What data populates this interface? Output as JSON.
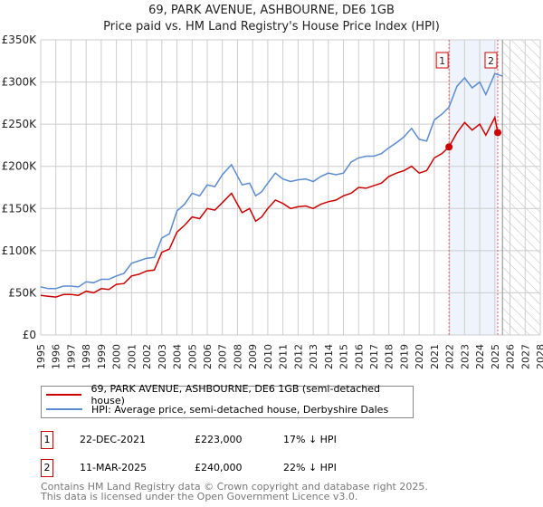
{
  "chart_data": {
    "type": "line",
    "title": "69, PARK AVENUE, ASHBOURNE, DE6 1GB",
    "subtitle": "Price paid vs. HM Land Registry's House Price Index (HPI)",
    "xlim": [
      1995,
      2028
    ],
    "ylim": [
      0,
      350000
    ],
    "x_ticks": [
      "1995",
      "1996",
      "1997",
      "1998",
      "1999",
      "2000",
      "2001",
      "2002",
      "2003",
      "2004",
      "2005",
      "2006",
      "2007",
      "2008",
      "2009",
      "2010",
      "2011",
      "2012",
      "2013",
      "2014",
      "2015",
      "2016",
      "2017",
      "2018",
      "2019",
      "2020",
      "2021",
      "2022",
      "2023",
      "2024",
      "2025",
      "2026",
      "2027",
      "2028"
    ],
    "y_ticks": [
      {
        "v": 0,
        "label": "£0"
      },
      {
        "v": 50000,
        "label": "£50K"
      },
      {
        "v": 100000,
        "label": "£100K"
      },
      {
        "v": 150000,
        "label": "£150K"
      },
      {
        "v": 200000,
        "label": "£200K"
      },
      {
        "v": 250000,
        "label": "£250K"
      },
      {
        "v": 300000,
        "label": "£300K"
      },
      {
        "v": 350000,
        "label": "£350K"
      }
    ],
    "grid": true,
    "shaded_range": [
      2021.97,
      2025.19
    ],
    "forecast_hatch_from": 2025.5,
    "series": [
      {
        "name": "69, PARK AVENUE, ASHBOURNE, DE6 1GB (semi-detached house)",
        "color": "#cc0000",
        "x": [
          1995,
          1995.5,
          1996,
          1996.5,
          1997,
          1997.5,
          1998,
          1998.5,
          1999,
          1999.5,
          2000,
          2000.5,
          2001,
          2001.5,
          2002,
          2002.5,
          2003,
          2003.5,
          2004,
          2004.5,
          2005,
          2005.5,
          2006,
          2006.5,
          2007,
          2007.6,
          2008.3,
          2008.8,
          2009.2,
          2009.6,
          2010,
          2010.5,
          2011,
          2011.5,
          2012,
          2012.5,
          2013,
          2013.5,
          2014,
          2014.5,
          2015,
          2015.5,
          2016,
          2016.5,
          2017,
          2017.5,
          2018,
          2018.5,
          2019,
          2019.5,
          2020,
          2020.5,
          2021,
          2021.5,
          2021.97,
          2022.5,
          2023,
          2023.5,
          2024,
          2024.4,
          2025,
          2025.19
        ],
        "y": [
          47000,
          46000,
          45000,
          48000,
          48000,
          47000,
          52000,
          50000,
          55000,
          54000,
          60000,
          61000,
          70000,
          72000,
          76000,
          77000,
          98000,
          102000,
          122000,
          130000,
          140000,
          138000,
          150000,
          148000,
          157000,
          168000,
          145000,
          150000,
          135000,
          140000,
          150000,
          160000,
          156000,
          150000,
          152000,
          153000,
          150000,
          155000,
          158000,
          160000,
          165000,
          168000,
          175000,
          174000,
          177000,
          180000,
          188000,
          192000,
          195000,
          200000,
          192000,
          195000,
          210000,
          215000,
          223000,
          240000,
          252000,
          243000,
          250000,
          237000,
          258000,
          240000
        ]
      },
      {
        "name": "HPI: Average price, semi-detached house, Derbyshire Dales",
        "color": "#5b8bd0",
        "x": [
          1995,
          1995.5,
          1996,
          1996.5,
          1997,
          1997.5,
          1998,
          1998.5,
          1999,
          1999.5,
          2000,
          2000.5,
          2001,
          2001.5,
          2002,
          2002.5,
          2003,
          2003.5,
          2004,
          2004.5,
          2005,
          2005.5,
          2006,
          2006.5,
          2007,
          2007.6,
          2008.3,
          2008.8,
          2009.2,
          2009.6,
          2010,
          2010.5,
          2011,
          2011.5,
          2012,
          2012.5,
          2013,
          2013.5,
          2014,
          2014.5,
          2015,
          2015.5,
          2016,
          2016.5,
          2017,
          2017.5,
          2018,
          2018.5,
          2019,
          2019.5,
          2020,
          2020.5,
          2021,
          2021.5,
          2021.97,
          2022.5,
          2023,
          2023.5,
          2024,
          2024.4,
          2025,
          2025.5
        ],
        "y": [
          57000,
          55000,
          55000,
          58000,
          58000,
          57000,
          63000,
          62000,
          66000,
          66000,
          70000,
          73000,
          85000,
          88000,
          91000,
          92000,
          115000,
          120000,
          147000,
          155000,
          168000,
          165000,
          178000,
          176000,
          190000,
          202000,
          178000,
          180000,
          165000,
          170000,
          180000,
          192000,
          185000,
          182000,
          184000,
          185000,
          182000,
          188000,
          192000,
          190000,
          192000,
          205000,
          210000,
          212000,
          212000,
          215000,
          222000,
          228000,
          235000,
          245000,
          232000,
          230000,
          255000,
          262000,
          270000,
          295000,
          305000,
          293000,
          300000,
          285000,
          310000,
          307000
        ]
      }
    ],
    "sales": [
      {
        "id": "1",
        "x": 2021.97,
        "y": 223000,
        "date": "22-DEC-2021",
        "price": "£223,000",
        "delta": "17% ↓ HPI"
      },
      {
        "id": "2",
        "x": 2025.19,
        "y": 240000,
        "date": "11-MAR-2025",
        "price": "£240,000",
        "delta": "22% ↓ HPI"
      }
    ]
  },
  "legend": {
    "red_label": "69, PARK AVENUE, ASHBOURNE, DE6 1GB (semi-detached house)",
    "blue_label": "HPI: Average price, semi-detached house, Derbyshire Dales"
  },
  "footer": {
    "line1": "Contains HM Land Registry data © Crown copyright and database right 2025.",
    "line2": "This data is licensed under the Open Government Licence v3.0."
  }
}
